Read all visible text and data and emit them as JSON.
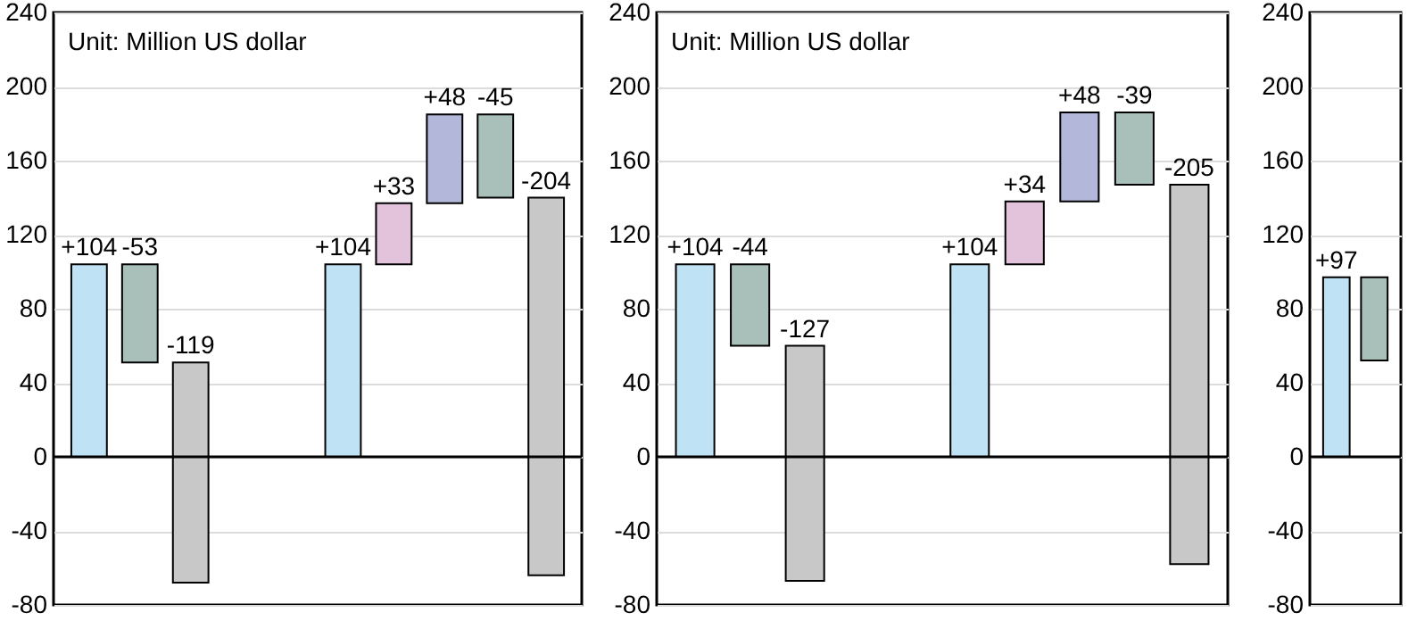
{
  "chart_data": [
    {
      "type": "bar",
      "categories": [
        null,
        null,
        null,
        null,
        null,
        null,
        null,
        null,
        null,
        null
      ],
      "values": [
        104,
        -53,
        -119,
        null,
        null,
        104,
        33,
        48,
        -45,
        -204
      ],
      "base": [
        0,
        104,
        51,
        null,
        null,
        0,
        104,
        137,
        185,
        140
      ],
      "colors": [
        "#bfe3f5",
        "#a9bfb9",
        "#c8c8c8",
        null,
        null,
        "#bfe3f5",
        "#e3c3dc",
        "#b3b7d9",
        "#a9bfb9",
        "#c8c8c8"
      ],
      "value_labels": [
        "+104",
        "-53",
        "-119",
        null,
        null,
        "+104",
        "+33",
        "+48",
        "-45",
        "-204"
      ],
      "ylim": [
        -80,
        240
      ],
      "yticks": [
        -80,
        -40,
        0,
        40,
        80,
        120,
        160,
        200,
        240
      ],
      "grid": "y",
      "tick_labels": "y",
      "ref_lines": [
        {
          "axis": "y",
          "value": 0,
          "color": "#000000"
        }
      ],
      "annotations": [
        "Unit: Million US dollar"
      ]
    },
    {
      "type": "bar",
      "categories": [
        null,
        null,
        null,
        null,
        null,
        null,
        null,
        null,
        null,
        null
      ],
      "values": [
        104,
        -44,
        -127,
        null,
        null,
        104,
        34,
        48,
        -39,
        -205
      ],
      "base": [
        0,
        104,
        60,
        null,
        null,
        0,
        104,
        138,
        186,
        147
      ],
      "colors": [
        "#bfe3f5",
        "#a9bfb9",
        "#c8c8c8",
        null,
        null,
        "#bfe3f5",
        "#e3c3dc",
        "#b3b7d9",
        "#a9bfb9",
        "#c8c8c8"
      ],
      "value_labels": [
        "+104",
        "-44",
        "-127",
        null,
        null,
        "+104",
        "+34",
        "+48",
        "-39",
        "-205"
      ],
      "ylim": [
        -80,
        240
      ],
      "yticks": [
        -80,
        -40,
        0,
        40,
        80,
        120,
        160,
        200,
        240
      ],
      "grid": "y",
      "tick_labels": "y",
      "ref_lines": [
        {
          "axis": "y",
          "value": 0,
          "color": "#000000"
        }
      ],
      "annotations": [
        "Unit: Million US dollar"
      ]
    },
    {
      "type": "bar",
      "categories": [
        null,
        null
      ],
      "values": [
        97,
        -45
      ],
      "base": [
        0,
        97
      ],
      "colors": [
        "#bfe3f5",
        "#a9bfb9"
      ],
      "value_labels": [
        "+97",
        null
      ],
      "ylim": [
        -80,
        240
      ],
      "yticks": [
        -80,
        -40,
        0,
        40,
        80,
        120,
        160,
        200,
        240
      ],
      "grid": "y",
      "tick_labels": "y",
      "ref_lines": [
        {
          "axis": "y",
          "value": 0,
          "color": "#000000"
        }
      ]
    }
  ]
}
